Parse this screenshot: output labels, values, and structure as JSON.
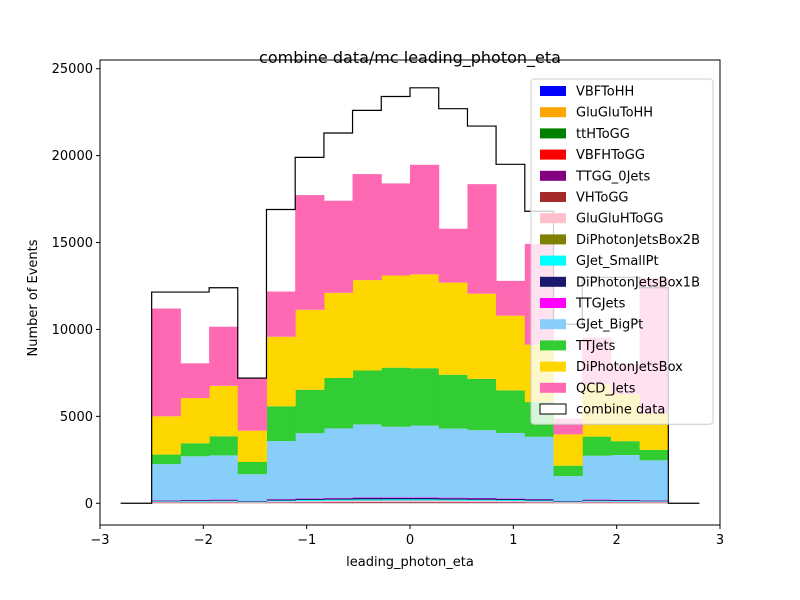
{
  "chart_data": {
    "type": "histogram",
    "title": "combine data/mc leading_photon_eta",
    "xlabel": "leading_photon_eta",
    "ylabel": "Number of Events",
    "xlim": [
      -3.0,
      3.0
    ],
    "ylim": [
      -1250,
      25500
    ],
    "x_ticks": [
      -3,
      -2,
      -1,
      0,
      1,
      2,
      3
    ],
    "y_ticks": [
      0,
      5000,
      10000,
      15000,
      20000,
      25000
    ],
    "legend_position": "top-right",
    "bin_edges": [
      -2.5,
      -2.222,
      -1.944,
      -1.667,
      -1.389,
      -1.111,
      -0.833,
      -0.556,
      -0.278,
      0.0,
      0.278,
      0.556,
      0.833,
      1.111,
      1.389,
      1.667,
      1.944,
      2.222,
      2.5
    ],
    "stack": [
      {
        "name": "VBFToHH",
        "color": "#0000ff",
        "values": [
          2,
          2,
          2,
          1,
          2,
          3,
          3,
          3,
          3,
          3,
          3,
          3,
          3,
          3,
          1,
          2,
          2,
          2
        ]
      },
      {
        "name": "GluGluToHH",
        "color": "#ffa500",
        "values": [
          3,
          3,
          3,
          2,
          3,
          4,
          4,
          4,
          4,
          4,
          4,
          4,
          4,
          4,
          2,
          3,
          3,
          3
        ]
      },
      {
        "name": "ttHToGG",
        "color": "#008000",
        "values": [
          5,
          5,
          5,
          3,
          5,
          6,
          7,
          7,
          7,
          7,
          7,
          7,
          6,
          5,
          3,
          5,
          5,
          5
        ]
      },
      {
        "name": "VBFHToGG",
        "color": "#ff0000",
        "values": [
          8,
          9,
          10,
          6,
          10,
          12,
          14,
          15,
          15,
          15,
          14,
          13,
          12,
          10,
          6,
          10,
          9,
          8
        ]
      },
      {
        "name": "TTGG_0Jets",
        "color": "#800080",
        "values": [
          15,
          18,
          20,
          12,
          20,
          25,
          28,
          30,
          30,
          30,
          28,
          27,
          25,
          20,
          12,
          20,
          18,
          15
        ]
      },
      {
        "name": "VHToGG",
        "color": "#a52a2a",
        "values": [
          10,
          12,
          13,
          8,
          13,
          16,
          18,
          20,
          20,
          20,
          18,
          17,
          16,
          13,
          8,
          13,
          12,
          10
        ]
      },
      {
        "name": "GluGluHToGG",
        "color": "#ffc0cb",
        "values": [
          35,
          40,
          45,
          28,
          50,
          60,
          66,
          70,
          72,
          72,
          70,
          66,
          60,
          50,
          28,
          45,
          40,
          35
        ]
      },
      {
        "name": "DiPhotonJetsBox2B",
        "color": "#808000",
        "values": [
          5,
          6,
          7,
          4,
          7,
          8,
          9,
          10,
          10,
          10,
          9,
          9,
          8,
          7,
          4,
          7,
          6,
          5
        ]
      },
      {
        "name": "GJet_SmallPt",
        "color": "#00ffff",
        "values": [
          30,
          35,
          40,
          30,
          45,
          55,
          60,
          65,
          65,
          65,
          60,
          55,
          50,
          45,
          30,
          40,
          35,
          30
        ]
      },
      {
        "name": "DiPhotonJetsBox1B",
        "color": "#191970",
        "values": [
          40,
          50,
          55,
          35,
          60,
          70,
          75,
          80,
          80,
          80,
          78,
          75,
          70,
          60,
          35,
          55,
          50,
          40
        ]
      },
      {
        "name": "TTGJets",
        "color": "#ff00ff",
        "values": [
          20,
          22,
          25,
          15,
          25,
          30,
          32,
          34,
          35,
          35,
          33,
          32,
          30,
          25,
          15,
          25,
          22,
          20
        ]
      },
      {
        "name": "GJet_BigPt",
        "color": "#87cefa",
        "values": [
          2080,
          2500,
          2530,
          1530,
          3340,
          3740,
          3990,
          4200,
          4060,
          4130,
          3970,
          3900,
          3760,
          3580,
          1420,
          2510,
          2570,
          2300
        ]
      },
      {
        "name": "TTJets",
        "color": "#32cd32",
        "values": [
          550,
          750,
          1100,
          700,
          2000,
          2500,
          2900,
          3100,
          3400,
          3300,
          3100,
          2950,
          2450,
          2000,
          600,
          1100,
          800,
          600
        ]
      },
      {
        "name": "DiPhotonJetsBox",
        "color": "#ffd700",
        "values": [
          2200,
          2600,
          2900,
          1800,
          4000,
          4600,
          4900,
          5200,
          5300,
          5400,
          5300,
          4900,
          4300,
          3300,
          1800,
          3000,
          2700,
          2100
        ]
      },
      {
        "name": "QCD_Jets",
        "color": "#ff69b4",
        "values": [
          6200,
          2000,
          3400,
          3000,
          2600,
          6600,
          5300,
          6100,
          5300,
          6300,
          3100,
          6300,
          2000,
          5800,
          900,
          2700,
          1700,
          7800
        ]
      }
    ],
    "data": {
      "name": "combine data",
      "color": "#000000",
      "values": [
        12150,
        12150,
        12400,
        7200,
        16900,
        19900,
        21300,
        22600,
        23400,
        23900,
        22700,
        21700,
        19500,
        16800,
        10300,
        13000,
        13000,
        12400
      ]
    }
  }
}
